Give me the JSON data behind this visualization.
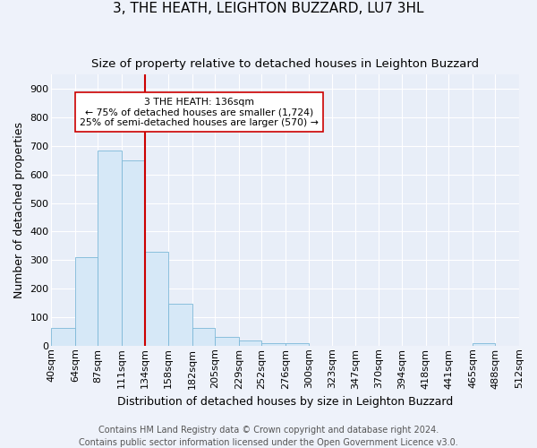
{
  "title": "3, THE HEATH, LEIGHTON BUZZARD, LU7 3HL",
  "subtitle": "Size of property relative to detached houses in Leighton Buzzard",
  "xlabel": "Distribution of detached houses by size in Leighton Buzzard",
  "ylabel": "Number of detached properties",
  "footnote1": "Contains HM Land Registry data © Crown copyright and database right 2024.",
  "footnote2": "Contains public sector information licensed under the Open Government Licence v3.0.",
  "bar_left_edges": [
    40,
    64,
    87,
    111,
    134,
    158,
    182,
    205,
    229,
    252,
    276,
    300,
    323,
    347,
    370,
    394,
    418,
    441,
    465,
    488
  ],
  "bar_widths": [
    24,
    23,
    24,
    23,
    24,
    24,
    23,
    24,
    23,
    24,
    24,
    23,
    24,
    23,
    24,
    24,
    23,
    24,
    23,
    24
  ],
  "bar_heights": [
    62,
    310,
    685,
    650,
    330,
    148,
    62,
    32,
    18,
    10,
    10,
    0,
    0,
    0,
    0,
    0,
    0,
    0,
    10,
    0
  ],
  "tick_labels": [
    "40sqm",
    "64sqm",
    "87sqm",
    "111sqm",
    "134sqm",
    "158sqm",
    "182sqm",
    "205sqm",
    "229sqm",
    "252sqm",
    "276sqm",
    "300sqm",
    "323sqm",
    "347sqm",
    "370sqm",
    "394sqm",
    "418sqm",
    "441sqm",
    "465sqm",
    "488sqm",
    "512sqm"
  ],
  "bar_fill_color": "#d6e8f7",
  "bar_edge_color": "#7db8d8",
  "property_line_x": 134,
  "property_line_color": "#cc0000",
  "annotation_text": "3 THE HEATH: 136sqm\n← 75% of detached houses are smaller (1,724)\n25% of semi-detached houses are larger (570) →",
  "annotation_box_color": "#ffffff",
  "annotation_box_edge": "#cc0000",
  "ylim": [
    0,
    950
  ],
  "yticks": [
    0,
    100,
    200,
    300,
    400,
    500,
    600,
    700,
    800,
    900
  ],
  "xlim_left": 40,
  "xlim_right": 512,
  "background_color": "#eef2fa",
  "plot_bg_color": "#e8eef8",
  "grid_color": "#ffffff",
  "title_fontsize": 11,
  "subtitle_fontsize": 9.5,
  "axis_label_fontsize": 9,
  "tick_fontsize": 8,
  "footnote_fontsize": 7
}
